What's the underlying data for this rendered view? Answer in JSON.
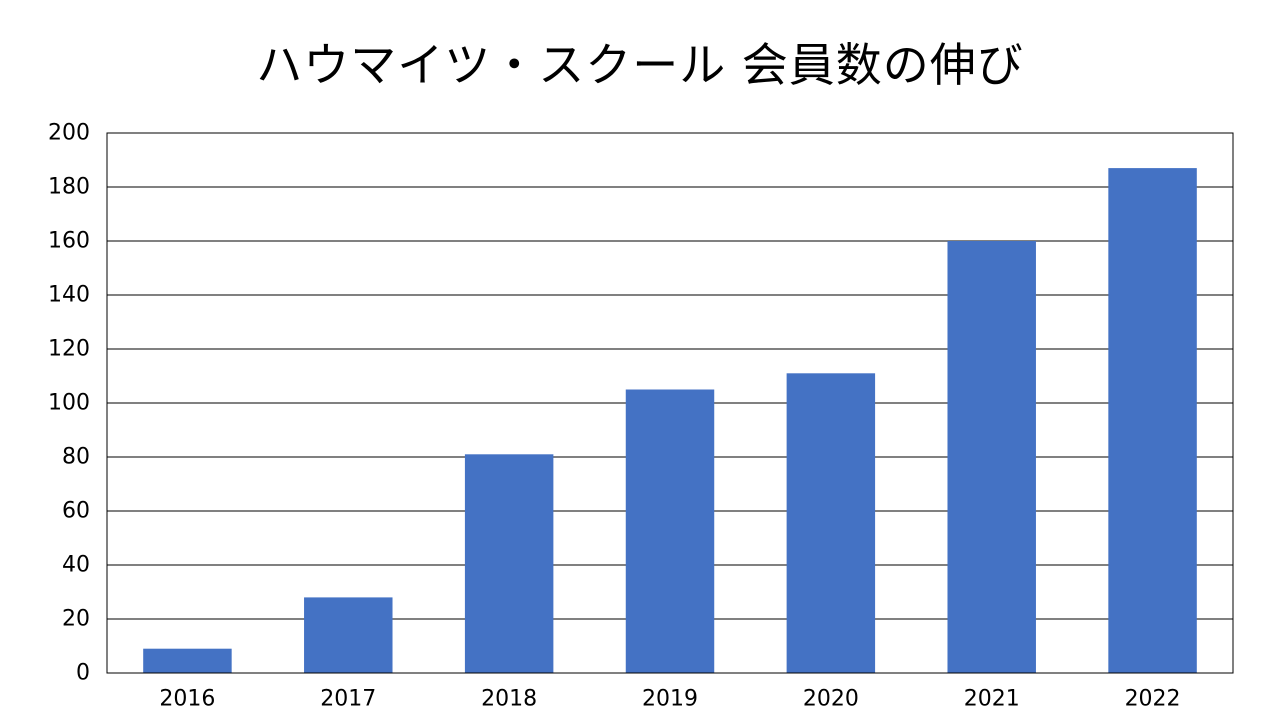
{
  "chart_data": {
    "type": "bar",
    "title": "ハウマイツ・スクール 会員数の伸び",
    "categories": [
      "2016",
      "2017",
      "2018",
      "2019",
      "2020",
      "2021",
      "2022"
    ],
    "values": [
      9,
      28,
      81,
      105,
      111,
      160,
      187
    ],
    "yticks": [
      "0",
      "20",
      "40",
      "60",
      "80",
      "100",
      "120",
      "140",
      "160",
      "180",
      "200"
    ],
    "ylim": [
      0,
      200
    ],
    "grid": true,
    "legend": "none",
    "bar_color": "#4472C4",
    "grid_color": "#000000"
  }
}
